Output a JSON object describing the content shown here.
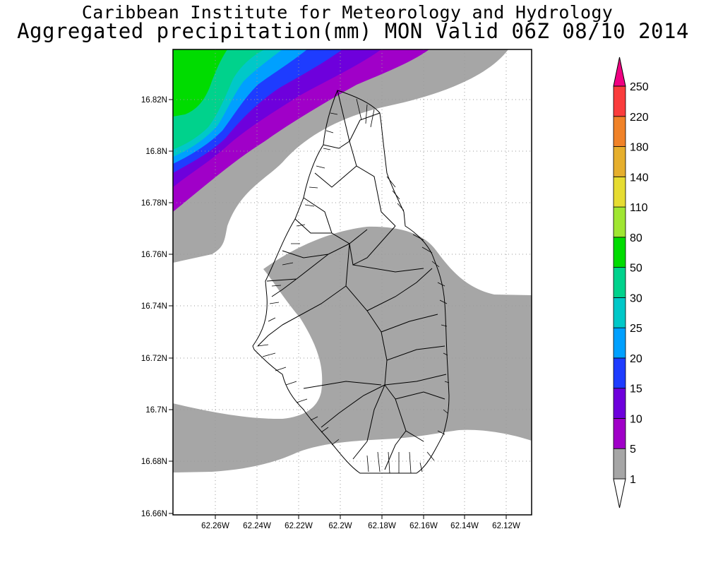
{
  "title_line1": "Caribbean Institute for Meteorology and Hydrology",
  "title_line2": "Aggregated precipitation(mm) MON Valid 06Z 08/10 2014",
  "map": {
    "y_ticks": [
      "16.82N",
      "16.8N",
      "16.78N",
      "16.76N",
      "16.74N",
      "16.72N",
      "16.7N",
      "16.68N",
      "16.66N"
    ],
    "x_ticks": [
      "62.26W",
      "62.24W",
      "62.22W",
      "62.2W",
      "62.18W",
      "62.16W",
      "62.14W",
      "62.12W"
    ],
    "grid": true
  },
  "colorbar": {
    "levels": [
      "1",
      "5",
      "10",
      "15",
      "20",
      "25",
      "30",
      "50",
      "80",
      "110",
      "140",
      "180",
      "220",
      "250"
    ],
    "colors": [
      "#ffffff",
      "#a6a6a6",
      "#a000c8",
      "#6e00dc",
      "#1e3cff",
      "#00a0ff",
      "#00c8c8",
      "#00d28c",
      "#00dc00",
      "#a0e632",
      "#e6dc32",
      "#e6af2d",
      "#f08228",
      "#fa3c3c",
      "#f00082"
    ]
  },
  "chart_data": {
    "type": "contour-map",
    "title": "Aggregated precipitation(mm) MON Valid 06Z 08/10 2014",
    "x_axis": {
      "ticks": [
        "62.26W",
        "62.24W",
        "62.22W",
        "62.2W",
        "62.18W",
        "62.16W",
        "62.14W",
        "62.12W"
      ]
    },
    "y_axis": {
      "ticks": [
        "16.66N",
        "16.68N",
        "16.7N",
        "16.72N",
        "16.74N",
        "16.76N",
        "16.78N",
        "16.8N",
        "16.82N"
      ]
    },
    "contour_levels_mm": [
      1,
      5,
      10,
      15,
      20,
      25,
      30,
      50,
      80,
      110,
      140,
      180,
      220,
      250
    ],
    "grid": true
  }
}
